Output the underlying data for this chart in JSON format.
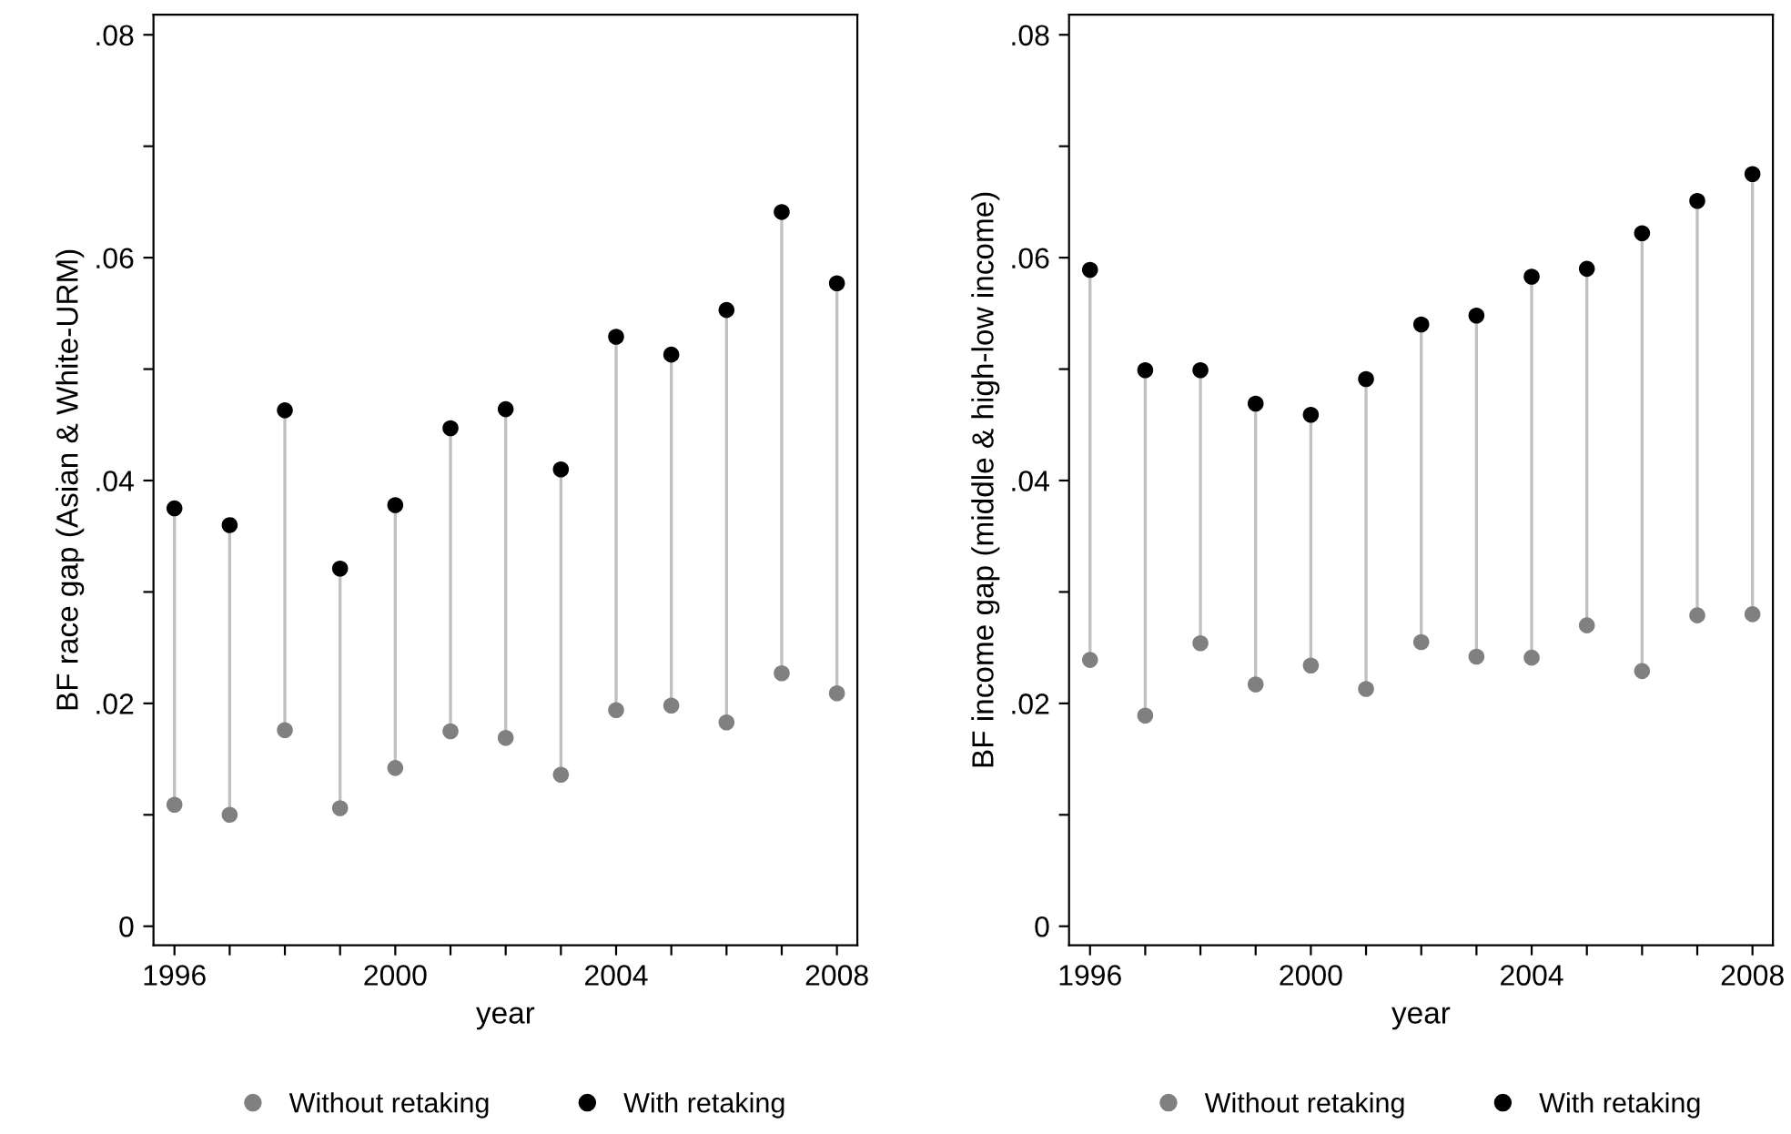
{
  "chart_data": [
    {
      "type": "scatter",
      "xlabel": "year",
      "ylabel": "BF race gap (Asian & White-URM)",
      "x": [
        1996,
        1997,
        1998,
        1999,
        2000,
        2001,
        2002,
        2003,
        2004,
        2005,
        2006,
        2007,
        2008
      ],
      "series": [
        {
          "name": "Without retaking",
          "color": "#808080",
          "values": [
            0.0109,
            0.01,
            0.0176,
            0.0106,
            0.0142,
            0.0175,
            0.0169,
            0.0136,
            0.0194,
            0.0198,
            0.0183,
            0.0227,
            0.0209
          ]
        },
        {
          "name": "With retaking",
          "color": "#000000",
          "values": [
            0.0375,
            0.036,
            0.0463,
            0.0321,
            0.0378,
            0.0447,
            0.0464,
            0.041,
            0.0529,
            0.0513,
            0.0553,
            0.0641,
            0.0577
          ]
        }
      ],
      "xlim": [
        1995.62,
        2008.37
      ],
      "ylim": [
        -0.0017,
        0.0818
      ],
      "xticks": [
        1996,
        {
          "value": 1997,
          "label": null
        },
        {
          "value": 1998,
          "label": null
        },
        {
          "value": 1999,
          "label": null
        },
        2000,
        {
          "value": 2001,
          "label": null
        },
        {
          "value": 2002,
          "label": null
        },
        {
          "value": 2003,
          "label": null
        },
        2004,
        {
          "value": 2005,
          "label": null
        },
        {
          "value": 2006,
          "label": null
        },
        {
          "value": 2007,
          "label": null
        },
        2008
      ],
      "yticks": [
        0,
        {
          "value": 0.01,
          "label": null
        },
        {
          "value": 0.02,
          "label": ".02"
        },
        {
          "value": 0.03,
          "label": null
        },
        {
          "value": 0.04,
          "label": ".04"
        },
        {
          "value": 0.05,
          "label": null
        },
        {
          "value": 0.06,
          "label": ".06"
        },
        {
          "value": 0.07,
          "label": null
        },
        {
          "value": 0.08,
          "label": ".08"
        }
      ],
      "grid": false,
      "legend": "bottom",
      "marker": "circle"
    },
    {
      "type": "scatter",
      "xlabel": "year",
      "ylabel": "BF income gap (middle & high-low income)",
      "x": [
        1996,
        1997,
        1998,
        1999,
        2000,
        2001,
        2002,
        2003,
        2004,
        2005,
        2006,
        2007,
        2008
      ],
      "series": [
        {
          "name": "Without retaking",
          "color": "#808080",
          "values": [
            0.0239,
            0.0189,
            0.0254,
            0.0217,
            0.0234,
            0.0213,
            0.0255,
            0.0242,
            0.0241,
            0.027,
            0.0229,
            0.0279,
            0.028
          ]
        },
        {
          "name": "With retaking",
          "color": "#000000",
          "values": [
            0.0589,
            0.0499,
            0.0499,
            0.0469,
            0.0459,
            0.0491,
            0.054,
            0.0548,
            0.0583,
            0.059,
            0.0622,
            0.0651,
            0.0675
          ]
        }
      ],
      "xlim": [
        1995.62,
        2008.37
      ],
      "ylim": [
        -0.0017,
        0.0818
      ],
      "xticks": [
        1996,
        {
          "value": 1997,
          "label": null
        },
        {
          "value": 1998,
          "label": null
        },
        {
          "value": 1999,
          "label": null
        },
        2000,
        {
          "value": 2001,
          "label": null
        },
        {
          "value": 2002,
          "label": null
        },
        {
          "value": 2003,
          "label": null
        },
        2004,
        {
          "value": 2005,
          "label": null
        },
        {
          "value": 2006,
          "label": null
        },
        {
          "value": 2007,
          "label": null
        },
        2008
      ],
      "yticks": [
        0,
        {
          "value": 0.01,
          "label": null
        },
        {
          "value": 0.02,
          "label": ".02"
        },
        {
          "value": 0.03,
          "label": null
        },
        {
          "value": 0.04,
          "label": ".04"
        },
        {
          "value": 0.05,
          "label": null
        },
        {
          "value": 0.06,
          "label": ".06"
        },
        {
          "value": 0.07,
          "label": null
        },
        {
          "value": 0.08,
          "label": ".08"
        }
      ],
      "grid": false,
      "legend": "bottom",
      "marker": "circle"
    }
  ]
}
